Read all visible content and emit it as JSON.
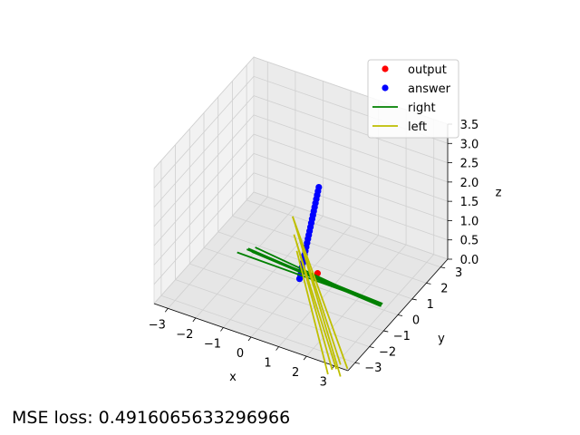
{
  "chart_data": {
    "type": "scatter",
    "projection": "3d",
    "axes": {
      "x": {
        "label": "x",
        "ticks": [
          "−3",
          "−2",
          "−1",
          "0",
          "1",
          "2",
          "3"
        ],
        "range": [
          -3.5,
          3.5
        ]
      },
      "y": {
        "label": "y",
        "ticks": [
          "−3",
          "−2",
          "−1",
          "0",
          "1",
          "2",
          "3"
        ],
        "range": [
          -3.5,
          3.5
        ]
      },
      "z": {
        "label": "z",
        "ticks": [
          "0.0",
          "0.5",
          "1.0",
          "1.5",
          "2.0",
          "2.5",
          "3.0",
          "3.5"
        ],
        "range": [
          0,
          3.5
        ]
      }
    },
    "grid": true,
    "legend": {
      "placement": "top-right",
      "entries": [
        {
          "label": "output",
          "kind": "point",
          "color": "#ff0000"
        },
        {
          "label": "answer",
          "kind": "point",
          "color": "#0000ff"
        },
        {
          "label": "right",
          "kind": "line",
          "color": "#008000"
        },
        {
          "label": "left",
          "kind": "line",
          "color": "#bfbf00"
        }
      ]
    },
    "series": [
      {
        "name": "output",
        "kind": "points",
        "color": "#ff0000",
        "points": [
          [
            0.5,
            0.2,
            0.25
          ]
        ]
      },
      {
        "name": "answer",
        "kind": "points",
        "color": "#0000ff",
        "points": [
          [
            -0.1,
            0.1,
            0.0
          ],
          [
            -0.08,
            0.12,
            0.1
          ],
          [
            -0.06,
            0.14,
            0.2
          ],
          [
            -0.04,
            0.16,
            0.3
          ],
          [
            -0.02,
            0.18,
            0.4
          ],
          [
            0.0,
            0.2,
            0.5
          ],
          [
            0.02,
            0.22,
            0.6
          ],
          [
            0.04,
            0.24,
            0.7
          ],
          [
            0.06,
            0.26,
            0.8
          ],
          [
            0.08,
            0.28,
            0.9
          ],
          [
            0.1,
            0.3,
            1.0
          ],
          [
            0.12,
            0.32,
            1.1
          ],
          [
            0.14,
            0.34,
            1.2
          ],
          [
            0.16,
            0.36,
            1.3
          ],
          [
            0.18,
            0.38,
            1.4
          ],
          [
            0.2,
            0.4,
            1.5
          ],
          [
            0.22,
            0.42,
            1.6
          ],
          [
            0.24,
            0.44,
            1.7
          ],
          [
            0.26,
            0.46,
            1.8
          ],
          [
            0.28,
            0.48,
            1.9
          ],
          [
            0.3,
            0.5,
            2.0
          ],
          [
            0.32,
            0.52,
            2.1
          ],
          [
            0.34,
            0.54,
            2.2
          ],
          [
            0.36,
            0.56,
            2.3
          ]
        ]
      },
      {
        "name": "right",
        "kind": "segments",
        "color": "#008000",
        "segments": [
          [
            [
              -1.9,
              0.0,
              0.35
            ],
            [
              2.9,
              0.1,
              0.1
            ]
          ],
          [
            [
              -1.9,
              0.0,
              0.38
            ],
            [
              2.9,
              0.0,
              0.08
            ]
          ],
          [
            [
              -1.9,
              -0.1,
              0.4
            ],
            [
              2.9,
              0.05,
              0.12
            ]
          ],
          [
            [
              -1.8,
              0.05,
              0.3
            ],
            [
              2.9,
              -0.05,
              0.1
            ]
          ],
          [
            [
              -2.3,
              0.0,
              0.18
            ],
            [
              2.9,
              0.05,
              0.1
            ]
          ],
          [
            [
              -1.7,
              0.1,
              0.42
            ],
            [
              2.8,
              0.0,
              0.09
            ]
          ]
        ]
      },
      {
        "name": "left",
        "kind": "segments",
        "color": "#bfbf00",
        "segments": [
          [
            [
              -0.4,
              0.2,
              1.5
            ],
            [
              2.3,
              -1.2,
              -1.2
            ]
          ],
          [
            [
              -0.4,
              0.2,
              1.5
            ],
            [
              2.1,
              -1.3,
              -1.1
            ]
          ],
          [
            [
              -0.3,
              0.2,
              1.3
            ],
            [
              2.2,
              -1.5,
              -1.3
            ]
          ],
          [
            [
              -0.3,
              0.1,
              1.1
            ],
            [
              2.0,
              -1.4,
              -1.2
            ]
          ],
          [
            [
              -0.2,
              0.1,
              0.9
            ],
            [
              1.9,
              -1.5,
              -1.2
            ]
          ],
          [
            [
              -0.2,
              0.1,
              0.7
            ],
            [
              1.8,
              -1.6,
              -1.3
            ]
          ]
        ]
      }
    ]
  },
  "footer": {
    "mse_text": "MSE loss: 0.4916065633296966"
  }
}
